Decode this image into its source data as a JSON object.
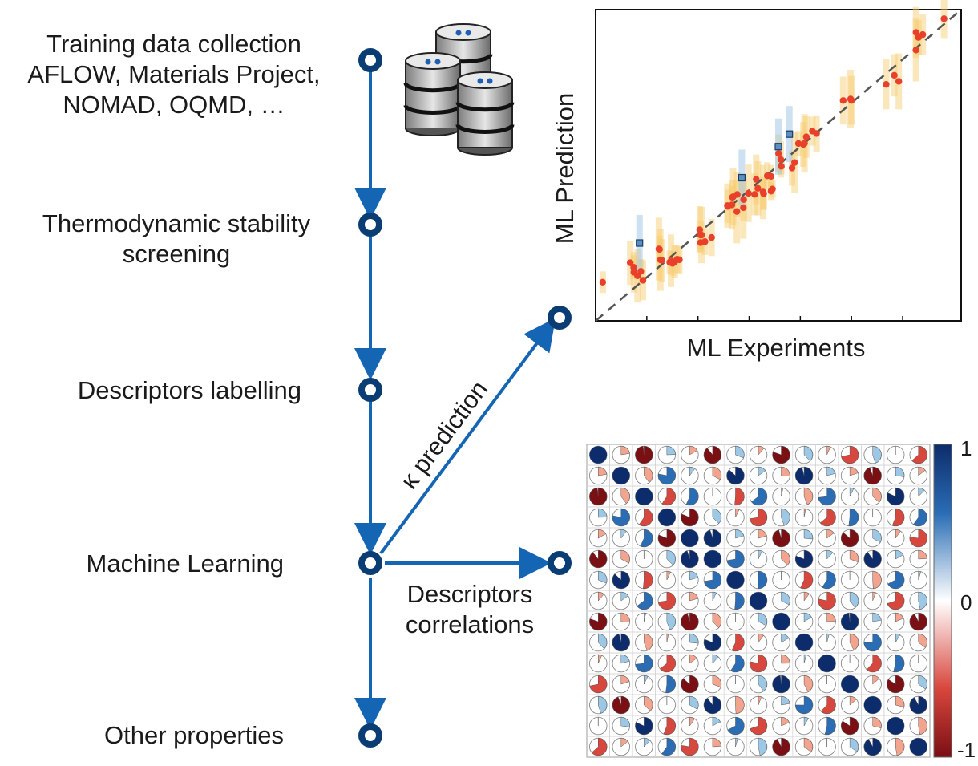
{
  "steps": [
    {
      "id": "training",
      "lines": [
        "Training data collection",
        "AFLOW, Materials Project,",
        "NOMAD, OQMD, …"
      ]
    },
    {
      "id": "stability",
      "lines": [
        "Thermodynamic stability",
        "screening"
      ]
    },
    {
      "id": "descriptors",
      "lines": [
        "Descriptors labelling"
      ]
    },
    {
      "id": "ml",
      "lines": [
        "Machine Learning"
      ]
    },
    {
      "id": "other",
      "lines": [
        "Other properties"
      ]
    }
  ],
  "branches": {
    "kappa": "κ prediction",
    "correlations": [
      "Descriptors",
      "correlations"
    ]
  },
  "scatter": {
    "xlabel": "ML Experiments",
    "ylabel": "ML Prediction"
  },
  "heatmap": {
    "colorbar_ticks": [
      "1",
      "0",
      "-1"
    ]
  },
  "colors": {
    "flow": "#1565b5",
    "node": "#0a3d73",
    "point": "#e8402a",
    "band": "#f7c96a",
    "band_blue": "#9cc3e6",
    "pos_strong": "#0d2c6b",
    "neg_strong": "#7a0f14"
  }
}
